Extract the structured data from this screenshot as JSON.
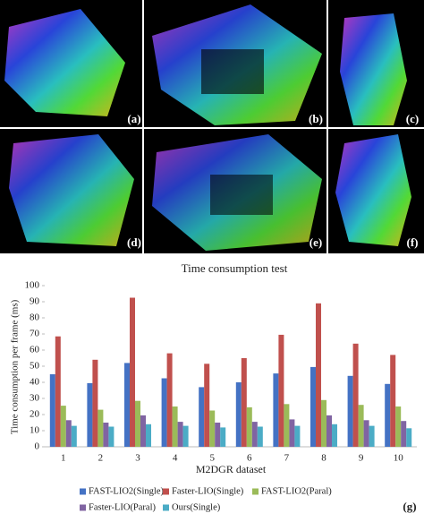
{
  "panel_labels": [
    "(a)",
    "(b)",
    "(c)",
    "(d)",
    "(e)",
    "(f)"
  ],
  "figure_label": "(g)",
  "chart_data": {
    "type": "bar",
    "title": "Time consumption test",
    "x_label": "M2DGR dataset",
    "y_label": "Time consumption per frame (ms)",
    "categories": [
      "1",
      "2",
      "3",
      "4",
      "5",
      "6",
      "7",
      "8",
      "9",
      "10"
    ],
    "series": [
      {
        "name": "FAST-LIO2(Single)",
        "color": "#4472c4",
        "values": [
          45,
          39.5,
          52,
          42.5,
          37,
          40,
          45.5,
          49.5,
          44,
          39
        ]
      },
      {
        "name": "Faster-LIO(Single)",
        "color": "#c0504d",
        "values": [
          68.5,
          54,
          92.5,
          58,
          51.5,
          55,
          69.5,
          89,
          64,
          57
        ]
      },
      {
        "name": "FAST-LIO2(Paral)",
        "color": "#9bbb59",
        "values": [
          25.5,
          23,
          28.5,
          25,
          22.5,
          24.5,
          26.5,
          29,
          26,
          25
        ]
      },
      {
        "name": "Faster-LIO(Paral)",
        "color": "#8064a2",
        "values": [
          16.5,
          15,
          19.5,
          15.5,
          15,
          15.5,
          17,
          19.5,
          16.5,
          16
        ]
      },
      {
        "name": "Ours(Single)",
        "color": "#4bacc6",
        "values": [
          13,
          12.5,
          14,
          13,
          12,
          12.5,
          13,
          14,
          13,
          11.5
        ]
      }
    ],
    "ylim": [
      0,
      100
    ],
    "yticks": [
      0,
      10,
      20,
      30,
      40,
      50,
      60,
      70,
      80,
      90,
      100
    ],
    "grid": false
  }
}
